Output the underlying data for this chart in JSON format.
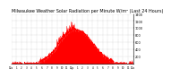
{
  "title": "Milwaukee Weather Solar Radiation per Minute W/m² (Last 24 Hours)",
  "title_fontsize": 3.5,
  "background_color": "#ffffff",
  "plot_bg_color": "#ffffff",
  "line_color": "#ff0000",
  "fill_color": "#ff0000",
  "grid_color": "#888888",
  "ylim": [
    0,
    1400
  ],
  "yticks": [
    200,
    400,
    600,
    800,
    1000,
    1200,
    1400
  ],
  "num_points": 1440,
  "peak_hour": 12.8,
  "peak_value": 950,
  "sigma_hours": 3.2,
  "noise_scale": 30,
  "x_tick_labels": [
    "12a",
    "1",
    "2",
    "3",
    "4",
    "5",
    "6",
    "7",
    "8",
    "9",
    "10",
    "11",
    "12p",
    "1",
    "2",
    "3",
    "4",
    "5",
    "6",
    "7",
    "8",
    "9",
    "10",
    "11",
    "12a"
  ],
  "vgrid_positions": [
    0,
    60,
    120,
    180,
    240,
    300,
    360,
    420,
    480,
    540,
    600,
    660,
    720,
    780,
    840,
    900,
    960,
    1020,
    1080,
    1140,
    1200,
    1260,
    1320,
    1380,
    1439
  ]
}
